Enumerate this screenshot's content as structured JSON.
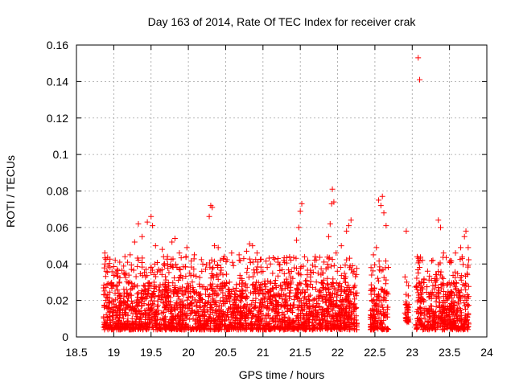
{
  "chart_data": {
    "type": "scatter",
    "title": "Day 163 of 2014, Rate Of TEC Index for receiver crak",
    "xlabel": "GPS time / hours",
    "ylabel": "ROTI / TECUs",
    "xlim": [
      18.5,
      24
    ],
    "ylim": [
      0,
      0.16
    ],
    "x_ticks": [
      "18.5",
      "19",
      "19.5",
      "20",
      "20.5",
      "21",
      "21.5",
      "22",
      "22.5",
      "23",
      "23.5",
      "24"
    ],
    "y_ticks": [
      "0",
      "0.02",
      "0.04",
      "0.06",
      "0.08",
      "0.1",
      "0.12",
      "0.14",
      "0.16"
    ],
    "grid": true,
    "marker": "+",
    "color": "#ff0000",
    "series": [
      {
        "name": "ROTI",
        "points": [
          [
            18.88,
            0.046
          ],
          [
            18.9,
            0.036
          ],
          [
            18.95,
            0.038
          ],
          [
            19.02,
            0.042
          ],
          [
            19.08,
            0.041
          ],
          [
            19.15,
            0.044
          ],
          [
            19.22,
            0.045
          ],
          [
            19.28,
            0.052
          ],
          [
            19.33,
            0.062
          ],
          [
            19.38,
            0.055
          ],
          [
            19.45,
            0.063
          ],
          [
            19.5,
            0.066
          ],
          [
            19.52,
            0.061
          ],
          [
            19.56,
            0.05
          ],
          [
            19.65,
            0.048
          ],
          [
            19.72,
            0.044
          ],
          [
            19.78,
            0.052
          ],
          [
            19.82,
            0.054
          ],
          [
            19.88,
            0.046
          ],
          [
            19.98,
            0.049
          ],
          [
            20.08,
            0.045
          ],
          [
            20.18,
            0.036
          ],
          [
            20.28,
            0.066
          ],
          [
            20.3,
            0.072
          ],
          [
            20.32,
            0.071
          ],
          [
            20.35,
            0.05
          ],
          [
            20.4,
            0.049
          ],
          [
            20.48,
            0.044
          ],
          [
            20.58,
            0.046
          ],
          [
            20.68,
            0.045
          ],
          [
            20.78,
            0.047
          ],
          [
            20.82,
            0.051
          ],
          [
            20.86,
            0.05
          ],
          [
            20.92,
            0.046
          ],
          [
            21.0,
            0.036
          ],
          [
            21.1,
            0.04
          ],
          [
            21.2,
            0.041
          ],
          [
            21.28,
            0.042
          ],
          [
            21.35,
            0.035
          ],
          [
            21.45,
            0.053
          ],
          [
            21.48,
            0.06
          ],
          [
            21.5,
            0.069
          ],
          [
            21.52,
            0.073
          ],
          [
            21.6,
            0.042
          ],
          [
            21.7,
            0.044
          ],
          [
            21.8,
            0.035
          ],
          [
            21.88,
            0.055
          ],
          [
            21.9,
            0.062
          ],
          [
            21.92,
            0.073
          ],
          [
            21.93,
            0.081
          ],
          [
            21.95,
            0.074
          ],
          [
            21.98,
            0.046
          ],
          [
            22.05,
            0.05
          ],
          [
            22.12,
            0.058
          ],
          [
            22.15,
            0.061
          ],
          [
            22.18,
            0.064
          ],
          [
            22.2,
            0.039
          ],
          [
            22.22,
            0.036
          ],
          [
            22.48,
            0.045
          ],
          [
            22.52,
            0.049
          ],
          [
            22.55,
            0.075
          ],
          [
            22.58,
            0.072
          ],
          [
            22.6,
            0.077
          ],
          [
            22.62,
            0.068
          ],
          [
            22.65,
            0.061
          ],
          [
            22.92,
            0.058
          ],
          [
            22.95,
            0.028
          ],
          [
            23.08,
            0.153
          ],
          [
            23.1,
            0.141
          ],
          [
            23.25,
            0.024
          ],
          [
            23.32,
            0.031
          ],
          [
            23.35,
            0.064
          ],
          [
            23.38,
            0.06
          ],
          [
            23.42,
            0.046
          ],
          [
            23.5,
            0.041
          ],
          [
            23.58,
            0.046
          ],
          [
            23.65,
            0.049
          ],
          [
            23.7,
            0.055
          ],
          [
            23.72,
            0.058
          ],
          [
            23.75,
            0.049
          ]
        ]
      }
    ],
    "dense_band": {
      "description": "dense cloud of ROTI samples between 0.005 and 0.03 TECU/s",
      "segments": [
        {
          "x": [
            18.86,
            22.26
          ],
          "y_low": 0.004,
          "y_high": 0.03
        },
        {
          "x": [
            22.44,
            22.68
          ],
          "y_low": 0.004,
          "y_high": 0.028
        },
        {
          "x": [
            22.9,
            22.96
          ],
          "y_low": 0.008,
          "y_high": 0.02
        },
        {
          "x": [
            23.05,
            23.76
          ],
          "y_low": 0.004,
          "y_high": 0.03
        }
      ]
    }
  }
}
